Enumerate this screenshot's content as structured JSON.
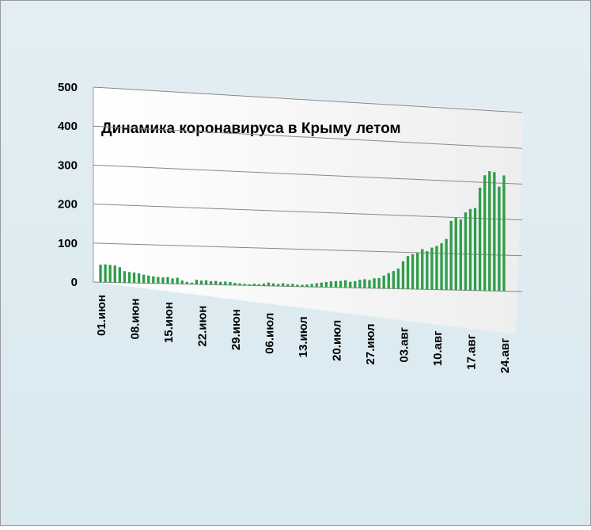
{
  "chart_data": {
    "type": "bar",
    "title": "Динамика  коронавируса в Крыму летом",
    "categories": [
      "01.июн",
      null,
      null,
      null,
      null,
      null,
      null,
      "08.июн",
      null,
      null,
      null,
      null,
      null,
      null,
      "15.июн",
      null,
      null,
      null,
      null,
      null,
      null,
      "22.июн",
      null,
      null,
      null,
      null,
      null,
      null,
      "29.июн",
      null,
      null,
      null,
      null,
      null,
      null,
      "06.июл",
      null,
      null,
      null,
      null,
      null,
      null,
      "13.июл",
      null,
      null,
      null,
      null,
      null,
      null,
      "20.июл",
      null,
      null,
      null,
      null,
      null,
      null,
      "27.июл",
      null,
      null,
      null,
      null,
      null,
      null,
      "03.авг",
      null,
      null,
      null,
      null,
      null,
      null,
      "10.авг",
      null,
      null,
      null,
      null,
      null,
      null,
      "17.авг",
      null,
      null,
      null,
      null,
      null,
      null,
      "24.авг"
    ],
    "values": [
      45,
      46,
      45,
      44,
      40,
      30,
      28,
      27,
      25,
      22,
      20,
      18,
      17,
      16,
      17,
      14,
      16,
      9,
      6,
      4,
      12,
      10,
      11,
      9,
      10,
      8,
      9,
      8,
      6,
      5,
      4,
      3,
      5,
      4,
      6,
      9,
      7,
      6,
      8,
      6,
      7,
      5,
      5,
      6,
      8,
      10,
      12,
      14,
      16,
      17,
      18,
      20,
      16,
      18,
      22,
      24,
      22,
      27,
      28,
      35,
      42,
      48,
      55,
      75,
      90,
      95,
      100,
      110,
      105,
      115,
      120,
      128,
      140,
      190,
      200,
      195,
      215,
      225,
      228,
      285,
      320,
      332,
      330,
      290,
      322
    ],
    "color": "#2e9e4a",
    "ylim": [
      0,
      500
    ],
    "yticks": [
      0,
      100,
      200,
      300,
      400,
      500
    ],
    "grid": true
  }
}
